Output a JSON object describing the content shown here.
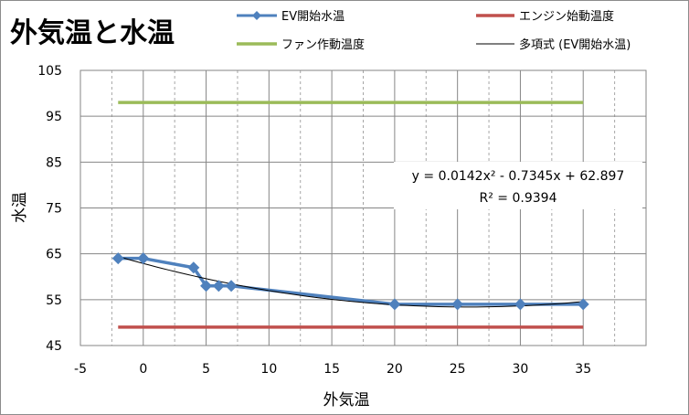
{
  "chart_data": {
    "type": "line",
    "title": "外気温と水温",
    "xlabel": "外気温",
    "ylabel": "水温",
    "xlim": [
      -5,
      40
    ],
    "ylim": [
      45,
      105
    ],
    "x_ticks": [
      -5,
      0,
      5,
      10,
      15,
      20,
      25,
      30,
      35
    ],
    "y_ticks": [
      45,
      55,
      65,
      75,
      85,
      95,
      105
    ],
    "x_tick_labels": [
      "-5",
      "0",
      "5",
      "10",
      "15",
      "20",
      "25",
      "30",
      "35"
    ],
    "y_tick_labels": [
      "45",
      "55",
      "65",
      "75",
      "85",
      "95",
      "105"
    ],
    "grid": {
      "x_major": true,
      "x_minor_dashed": true,
      "y_major": true
    },
    "series": [
      {
        "name": "EV開始水温",
        "color": "#4f81bd",
        "marker": "diamond",
        "x": [
          -2,
          0,
          4,
          5,
          6,
          7,
          20,
          25,
          30,
          35
        ],
        "y": [
          64,
          64,
          62,
          58,
          58,
          58,
          54,
          54,
          54,
          54
        ]
      },
      {
        "name": "エンジン始動温度",
        "color": "#c0504d",
        "marker": "none",
        "x": [
          -2,
          35
        ],
        "y": [
          49,
          49
        ]
      },
      {
        "name": "ファン作動温度",
        "color": "#9bbb59",
        "marker": "none",
        "x": [
          -2,
          35
        ],
        "y": [
          98,
          98
        ]
      },
      {
        "name": "多項式 (EV開始水温)",
        "color": "#000000",
        "marker": "none",
        "trendline": {
          "a2": 0.0142,
          "a1": -0.7345,
          "a0": 62.897,
          "x_range": [
            -2,
            35
          ]
        }
      }
    ],
    "annotations": [
      "y = 0.0142x² - 0.7345x + 62.897",
      "R² = 0.9394"
    ],
    "legend_position": "top"
  }
}
